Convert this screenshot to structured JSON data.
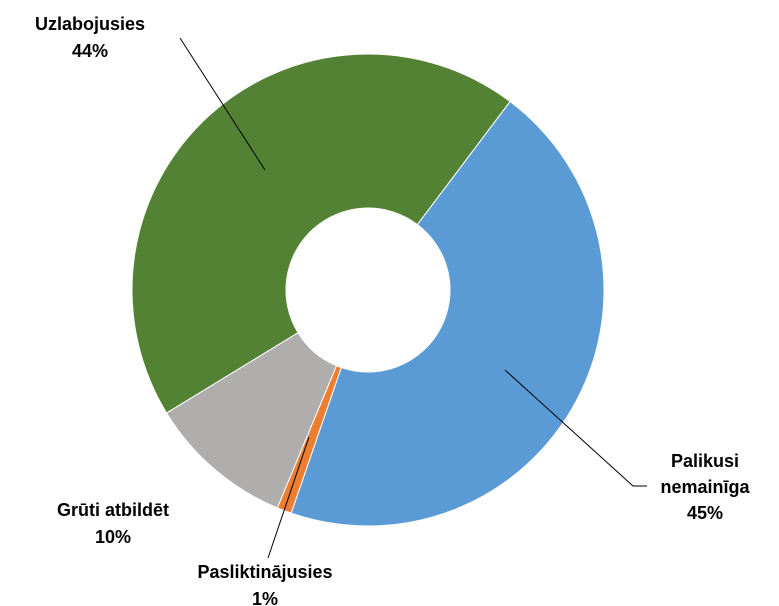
{
  "chart_data": {
    "type": "pie",
    "categories": [
      "Palikusi nemainīga",
      "Pasliktinājusies",
      "Grūti atbildēt",
      "Uzlabojusies"
    ],
    "values": [
      45,
      1,
      10,
      44
    ],
    "value_labels": [
      "45%",
      "1%",
      "10%",
      "44%"
    ],
    "colors": [
      "#5b9bd5",
      "#ed7d31",
      "#b0aeac",
      "#548235"
    ]
  }
}
